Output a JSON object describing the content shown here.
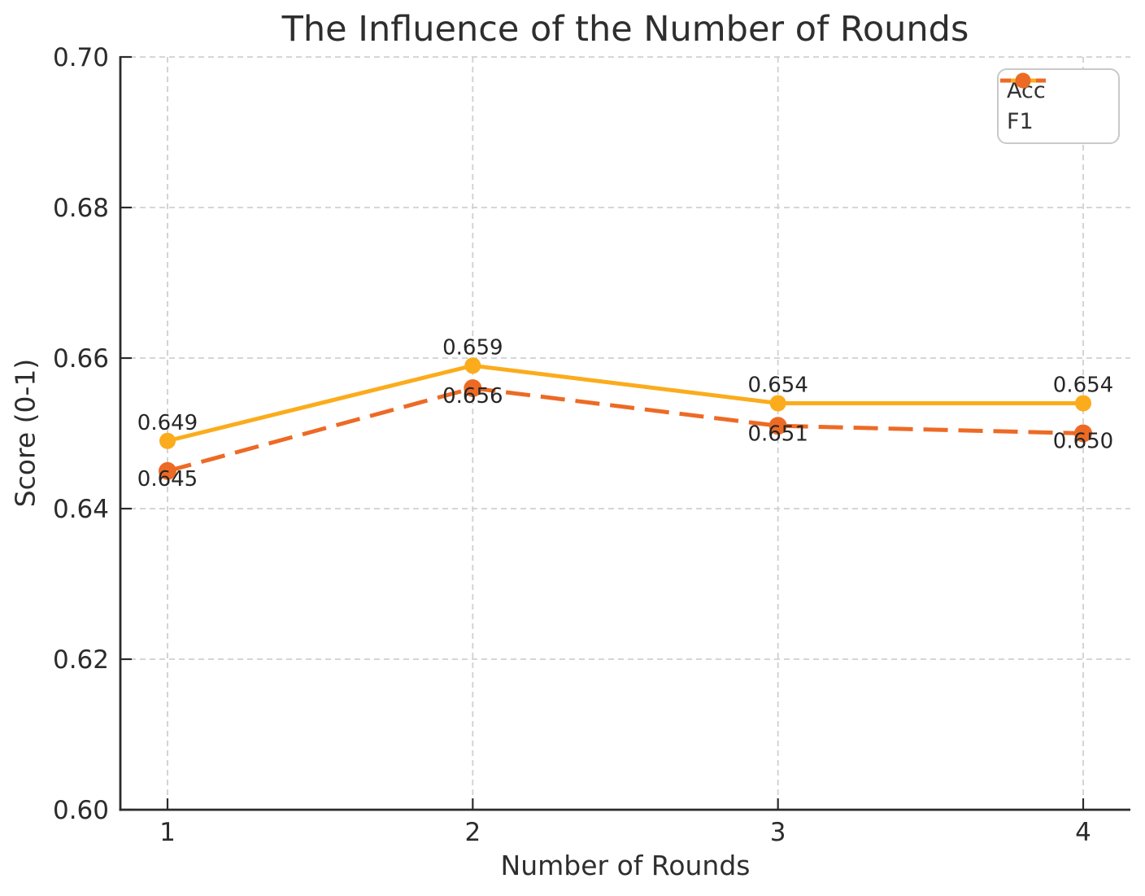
{
  "chart_data": {
    "type": "line",
    "title": "The Influence of the Number of Rounds",
    "xlabel": "Number of Rounds",
    "ylabel": "Score (0-1)",
    "x": [
      1,
      2,
      3,
      4
    ],
    "x_tick_labels": [
      "1",
      "2",
      "3",
      "4"
    ],
    "y_ticks": [
      0.6,
      0.62,
      0.64,
      0.66,
      0.68,
      0.7
    ],
    "y_tick_labels": [
      "0.60",
      "0.62",
      "0.64",
      "0.66",
      "0.68",
      "0.70"
    ],
    "ylim": [
      0.6,
      0.7
    ],
    "grid": "on",
    "grid_style": "dashed",
    "legend_position": "upper right",
    "series": [
      {
        "name": "Acc",
        "color": "#FBAC1C",
        "style": "solid",
        "marker": "circle",
        "values": [
          0.649,
          0.659,
          0.654,
          0.654
        ],
        "point_labels": [
          "0.649",
          "0.659",
          "0.654",
          "0.654"
        ],
        "label_position": "above"
      },
      {
        "name": "F1",
        "color": "#ED6A25",
        "style": "dashed",
        "marker": "circle",
        "values": [
          0.645,
          0.656,
          0.651,
          0.65
        ],
        "point_labels": [
          "0.645",
          "0.656",
          "0.651",
          "0.650"
        ],
        "label_position": "below"
      }
    ],
    "colors": {
      "text": "#2e2e2e",
      "grid": "#d0d0d0",
      "spine": "#2b2b2b",
      "legend_border": "#c9c9c9",
      "background": "#ffffff"
    }
  }
}
